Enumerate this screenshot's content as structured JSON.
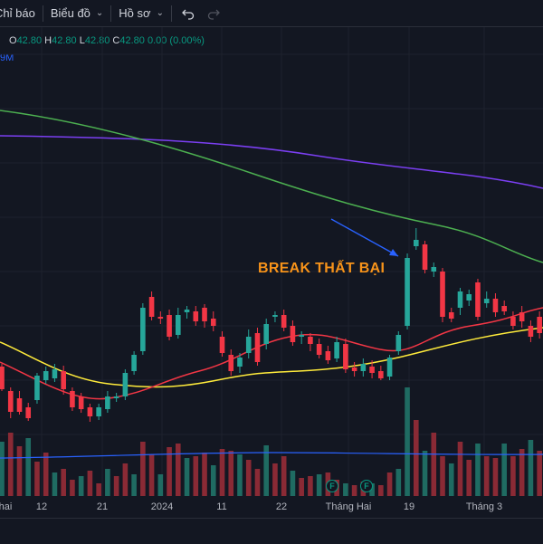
{
  "toolbar": {
    "indicators_label": "Chỉ báo",
    "chart_type_label": "Biểu đồ",
    "profile_label": "Hồ sơ",
    "undo_icon": "undo-icon",
    "redo_icon": "redo-icon"
  },
  "ohlc": {
    "o_key": "O",
    "o_val": "42.80",
    "h_key": "H",
    "h_val": "42.80",
    "l_key": "L",
    "l_val": "42.80",
    "c_key": "C",
    "c_val": "42.80",
    "change": "0.00 (0.00%)"
  },
  "volume_tag": "9M",
  "annotation": "BREAK THẤT BẠI",
  "x_axis": {
    "labels": [
      "hai",
      "12",
      "21",
      "2024",
      "11",
      "22",
      "Tháng Hai",
      "19",
      "Tháng 3"
    ]
  },
  "flags": [
    "F",
    "F"
  ],
  "colors": {
    "up": "#26a69a",
    "down": "#f23645",
    "ma_fast": "#f23645",
    "ma_mid": "#ffeb3b",
    "ma_slow": "#4caf50",
    "ma_long": "#7b3ff2",
    "volume_ma": "#2962ff",
    "annotation": "#f7931a",
    "arrow": "#2962ff"
  }
}
